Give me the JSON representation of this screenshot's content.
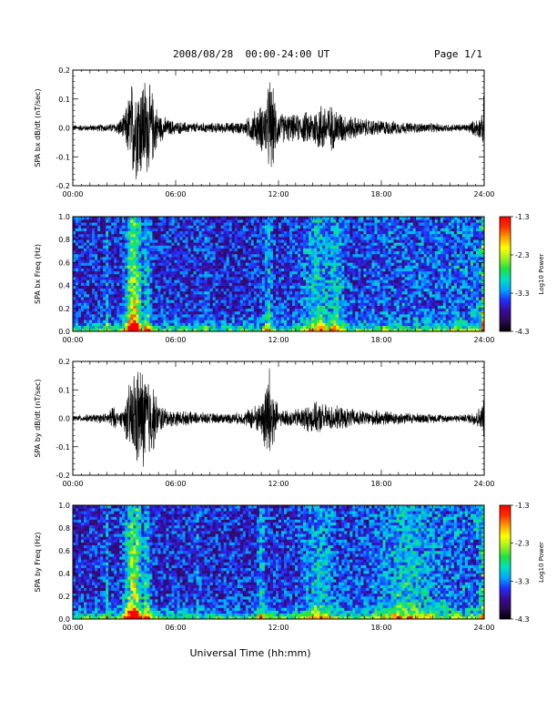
{
  "header": {
    "title": "2008/08/28  00:00-24:00 UT",
    "page": "Page 1/1"
  },
  "colors": {
    "trace": "#000000",
    "colorbar": [
      "#000000",
      "#2b0a55",
      "#3a0a9a",
      "#2030ff",
      "#00a8ff",
      "#00e0c0",
      "#20e040",
      "#a0f020",
      "#ffff00",
      "#ffa000",
      "#ff3000",
      "#ff0000"
    ]
  },
  "chart_data": [
    {
      "type": "line",
      "ylabel": "SPA bx dB/dt (nT/sec)",
      "xlabel": "",
      "x_ticks": [
        "00:00",
        "06:00",
        "12:00",
        "18:00",
        "24:00"
      ],
      "y_ticks": [
        "0.2",
        "0.1",
        "0.0",
        "-0.1",
        "-0.2"
      ],
      "xlim": [
        0,
        24
      ],
      "ylim": [
        -0.2,
        0.2
      ],
      "envelope": {
        "x": [
          0,
          1,
          2,
          2.5,
          3,
          3.5,
          3.8,
          4.2,
          4.6,
          5,
          5.5,
          6,
          7,
          8,
          9,
          10,
          10.5,
          11,
          11.3,
          11.5,
          12,
          13,
          14,
          14.5,
          15,
          15.5,
          16,
          17,
          18,
          19,
          20,
          21,
          22,
          23,
          23.9,
          24
        ],
        "amp": [
          0.012,
          0.012,
          0.015,
          0.02,
          0.05,
          0.2,
          0.2,
          0.2,
          0.15,
          0.06,
          0.035,
          0.025,
          0.02,
          0.02,
          0.02,
          0.025,
          0.06,
          0.09,
          0.12,
          0.2,
          0.06,
          0.05,
          0.07,
          0.1,
          0.09,
          0.07,
          0.05,
          0.035,
          0.03,
          0.025,
          0.02,
          0.018,
          0.015,
          0.015,
          0.05,
          0.15
        ]
      }
    },
    {
      "type": "heatmap",
      "ylabel": "SPA bx Freq (Hz)",
      "xlabel": "",
      "x_ticks": [
        "00:00",
        "06:00",
        "12:00",
        "18:00",
        "24:00"
      ],
      "y_ticks": [
        "1.0",
        "0.8",
        "0.6",
        "0.4",
        "0.2",
        "0.0"
      ],
      "xlim": [
        0,
        24
      ],
      "ylim": [
        0,
        1
      ],
      "colorbar_label": "Log10 Power",
      "colorbar_ticks": [
        "-1.3",
        "-2.3",
        "-3.3",
        "-4.3"
      ],
      "clim": [
        -4.3,
        -1.3
      ],
      "bursts": [
        {
          "t": 2.0,
          "w": 0.1,
          "s": 0.35
        },
        {
          "t": 3.55,
          "w": 0.45,
          "s": 1.0
        },
        {
          "t": 4.3,
          "w": 0.25,
          "s": 0.5
        },
        {
          "t": 7.8,
          "w": 0.1,
          "s": 0.25
        },
        {
          "t": 11.4,
          "w": 0.2,
          "s": 0.45
        },
        {
          "t": 14.3,
          "w": 0.8,
          "s": 0.45
        },
        {
          "t": 15.3,
          "w": 0.4,
          "s": 0.45
        },
        {
          "t": 23.9,
          "w": 0.1,
          "s": 0.5
        }
      ]
    },
    {
      "type": "line",
      "ylabel": "SPA by dB/dt (nT/sec)",
      "xlabel": "",
      "x_ticks": [
        "00:00",
        "06:00",
        "12:00",
        "18:00",
        "24:00"
      ],
      "y_ticks": [
        "0.2",
        "0.1",
        "0.0",
        "-0.1",
        "-0.2"
      ],
      "xlim": [
        0,
        24
      ],
      "ylim": [
        -0.2,
        0.2
      ],
      "envelope": {
        "x": [
          0,
          1,
          2,
          2.3,
          2.7,
          3,
          3.5,
          3.8,
          4.2,
          4.6,
          5,
          5.5,
          6,
          7,
          8,
          9,
          10,
          10.5,
          11,
          11.3,
          11.5,
          12,
          13,
          14,
          14.5,
          15,
          16,
          17,
          18,
          19,
          20,
          21,
          22,
          23,
          23.9,
          24
        ],
        "amp": [
          0.012,
          0.015,
          0.02,
          0.05,
          0.02,
          0.05,
          0.19,
          0.2,
          0.2,
          0.15,
          0.06,
          0.035,
          0.03,
          0.025,
          0.02,
          0.02,
          0.025,
          0.05,
          0.06,
          0.2,
          0.2,
          0.03,
          0.035,
          0.06,
          0.06,
          0.05,
          0.04,
          0.03,
          0.03,
          0.025,
          0.02,
          0.018,
          0.015,
          0.015,
          0.05,
          0.15
        ]
      }
    },
    {
      "type": "heatmap",
      "ylabel": "SPA by Freq (Hz)",
      "xlabel": "Universal Time (hh:mm)",
      "x_ticks": [
        "00:00",
        "06:00",
        "12:00",
        "18:00",
        "24:00"
      ],
      "y_ticks": [
        "1.0",
        "0.8",
        "0.6",
        "0.4",
        "0.2",
        "0.0"
      ],
      "xlim": [
        0,
        24
      ],
      "ylim": [
        0,
        1
      ],
      "colorbar_label": "Log10 Power",
      "colorbar_ticks": [
        "-1.3",
        "-2.3",
        "-3.3",
        "-4.3"
      ],
      "clim": [
        -4.3,
        -1.3
      ],
      "bursts": [
        {
          "t": 2.0,
          "w": 0.1,
          "s": 0.4
        },
        {
          "t": 3.55,
          "w": 0.5,
          "s": 1.0
        },
        {
          "t": 4.3,
          "w": 0.25,
          "s": 0.6
        },
        {
          "t": 7.3,
          "w": 0.1,
          "s": 0.25
        },
        {
          "t": 11.0,
          "w": 0.2,
          "s": 0.45
        },
        {
          "t": 14.3,
          "w": 0.8,
          "s": 0.4
        },
        {
          "t": 19.5,
          "w": 1.5,
          "s": 0.35
        },
        {
          "t": 23.9,
          "w": 0.1,
          "s": 0.5
        }
      ]
    }
  ]
}
